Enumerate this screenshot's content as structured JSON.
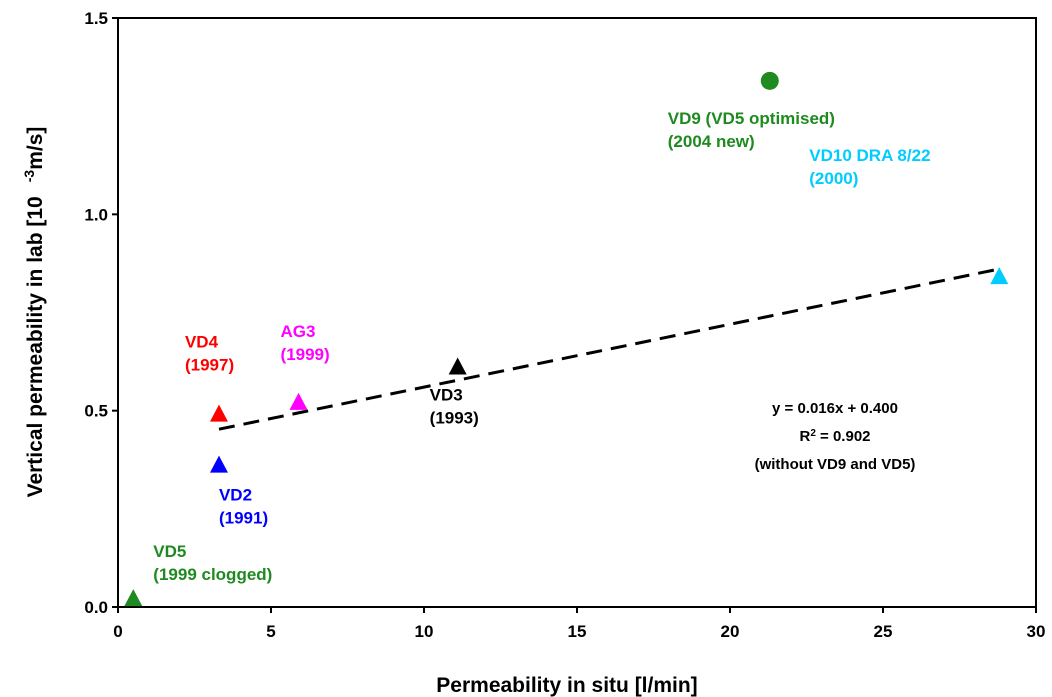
{
  "chart_data": {
    "type": "scatter",
    "xlabel": "Permeability in situ  [l/min]",
    "ylabel_main": "Vertical permeability in lab  [10",
    "ylabel_exp": "-3",
    "ylabel_unit": "m/s]",
    "xlim": [
      0,
      30
    ],
    "ylim": [
      0,
      1.5
    ],
    "x_ticks": [
      "0",
      "5",
      "10",
      "15",
      "20",
      "25",
      "30"
    ],
    "y_ticks": [
      "0.0",
      "0.5",
      "1.0",
      "1.5"
    ],
    "grid": false,
    "points": [
      {
        "x": 0.5,
        "y": 0.02,
        "marker": "triangle",
        "color": "#1f8a1f",
        "label": [
          "VD5",
          "(1999 clogged)"
        ]
      },
      {
        "x": 3.3,
        "y": 0.36,
        "marker": "triangle",
        "color": "#0000ff",
        "label": [
          "VD2",
          "(1991)"
        ]
      },
      {
        "x": 3.3,
        "y": 0.49,
        "marker": "triangle",
        "color": "#ff0000",
        "label": [
          "VD4",
          "(1997)"
        ]
      },
      {
        "x": 5.9,
        "y": 0.52,
        "marker": "triangle",
        "color": "#ff00ff",
        "label": [
          "AG3",
          "(1999)"
        ]
      },
      {
        "x": 11.1,
        "y": 0.61,
        "marker": "triangle",
        "color": "#000000",
        "label": [
          "VD3",
          "(1993)"
        ]
      },
      {
        "x": 21.3,
        "y": 1.34,
        "marker": "circle",
        "color": "#1f8a1f",
        "label": [
          "VD9 (VD5 optimised)",
          "(2004 new)"
        ]
      },
      {
        "x": 28.8,
        "y": 0.84,
        "marker": "triangle",
        "color": "#00ccff",
        "label": [
          "VD10 DRA 8/22",
          "(2000)"
        ]
      }
    ],
    "trendline": {
      "slope": 0.016,
      "intercept": 0.4,
      "x_start": 3.3,
      "x_end": 28.8,
      "style": "dashed",
      "color": "#000000"
    },
    "annotation": {
      "equation": "y = 0.016x + 0.400",
      "r2_prefix": "R",
      "r2_sup": "2",
      "r2_value": " = 0.902",
      "note": "(without VD9 and VD5)"
    }
  }
}
